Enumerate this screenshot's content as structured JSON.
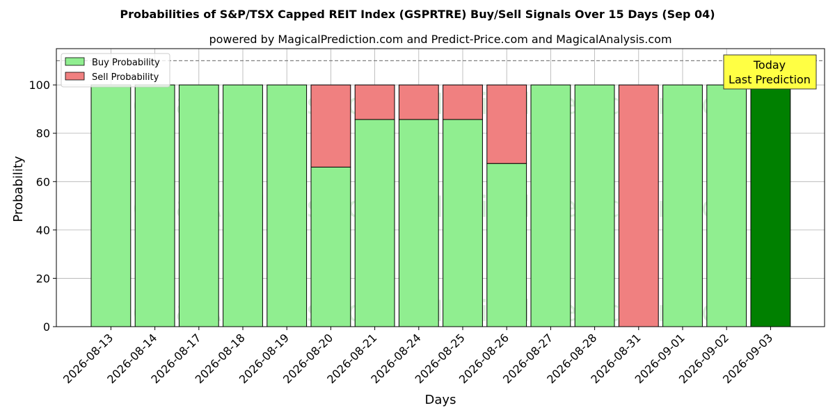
{
  "title": "Probabilities of S&P/TSX Capped REIT Index (GSPRTRE) Buy/Sell Signals Over 15 Days (Sep 04)",
  "subtitle": "powered by MagicalPrediction.com and Predict-Price.com and MagicalAnalysis.com",
  "watermarks": [
    "MagicalAnalysis.com",
    "MagicalPrediction.com"
  ],
  "annotation": {
    "line1": "Today",
    "line2": "Last Prediction"
  },
  "colors": {
    "buy": "#90ee90",
    "sell": "#f08080",
    "today_buy": "#008000",
    "annotation_bg": "#ffff44"
  },
  "chart_data": {
    "type": "bar",
    "stacked": true,
    "xlabel": "Days",
    "ylabel": "Probability",
    "ylim": [
      0,
      115
    ],
    "yticks": [
      0,
      20,
      40,
      60,
      80,
      100
    ],
    "reference_line": 110,
    "grid": true,
    "legend_position": "top-left",
    "categories": [
      "2026-08-13",
      "2026-08-14",
      "2026-08-17",
      "2026-08-18",
      "2026-08-19",
      "2026-08-20",
      "2026-08-21",
      "2026-08-24",
      "2026-08-25",
      "2026-08-26",
      "2026-08-27",
      "2026-08-28",
      "2026-08-31",
      "2026-09-01",
      "2026-09-02",
      "2026-09-03"
    ],
    "series": [
      {
        "name": "Buy Probability",
        "values": [
          100,
          100,
          100,
          100,
          100,
          66,
          85.7,
          85.7,
          85.7,
          67.5,
          100,
          100,
          0,
          100,
          100,
          100
        ]
      },
      {
        "name": "Sell Probability",
        "values": [
          0,
          0,
          0,
          0,
          0,
          34,
          14.3,
          14.3,
          14.3,
          32.5,
          0,
          0,
          100,
          0,
          0,
          0
        ]
      }
    ]
  }
}
